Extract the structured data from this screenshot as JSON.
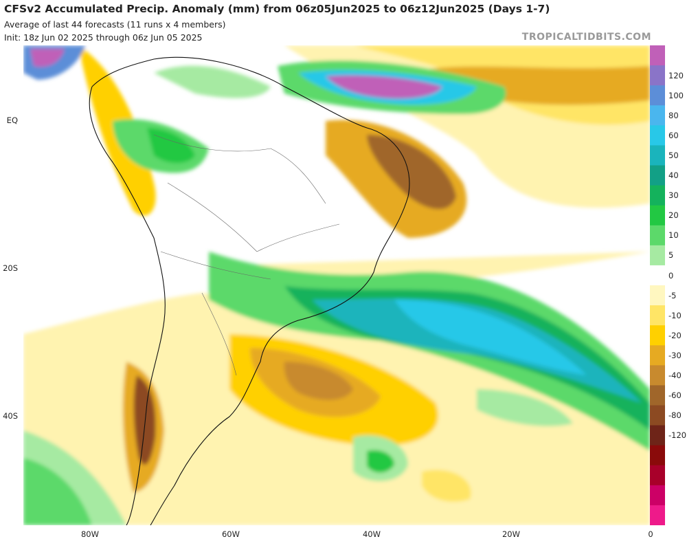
{
  "header": {
    "title": "CFSv2 Accumulated Precip. Anomaly (mm) from 06z05Jun2025 to 06z12Jun2025 (Days 1-7)",
    "subtitle": "Average of last 44 forecasts (11 runs x 4 members)",
    "init": "Init: 18z Jun 02 2025 through 06z Jun 05 2025"
  },
  "watermark": "TROPICALTIDBITS.COM",
  "axes": {
    "lat_labels": [
      "EQ",
      "20S",
      "40S"
    ],
    "lon_labels": [
      "80W",
      "60W",
      "40W",
      "20W",
      "0"
    ]
  },
  "colorbar": {
    "labels": [
      "120",
      "100",
      "80",
      "60",
      "50",
      "40",
      "30",
      "20",
      "10",
      "5",
      "0",
      "-5",
      "-10",
      "-20",
      "-30",
      "-40",
      "-60",
      "-80",
      "-120"
    ],
    "colors": [
      "#c060b8",
      "#8a74c8",
      "#5c8ed8",
      "#4ab6ee",
      "#28c8e8",
      "#1ab4bc",
      "#12a086",
      "#14b25c",
      "#22c843",
      "#5cd96a",
      "#a6eaa2",
      "#ffffff",
      "#fff7c0",
      "#ffe566",
      "#ffd000",
      "#e6aa22",
      "#c88a2e",
      "#a0662a",
      "#8c4a22",
      "#6e2418",
      "#8a0a0a",
      "#a8002a",
      "#cc0066",
      "#ee1a8a"
    ]
  }
}
